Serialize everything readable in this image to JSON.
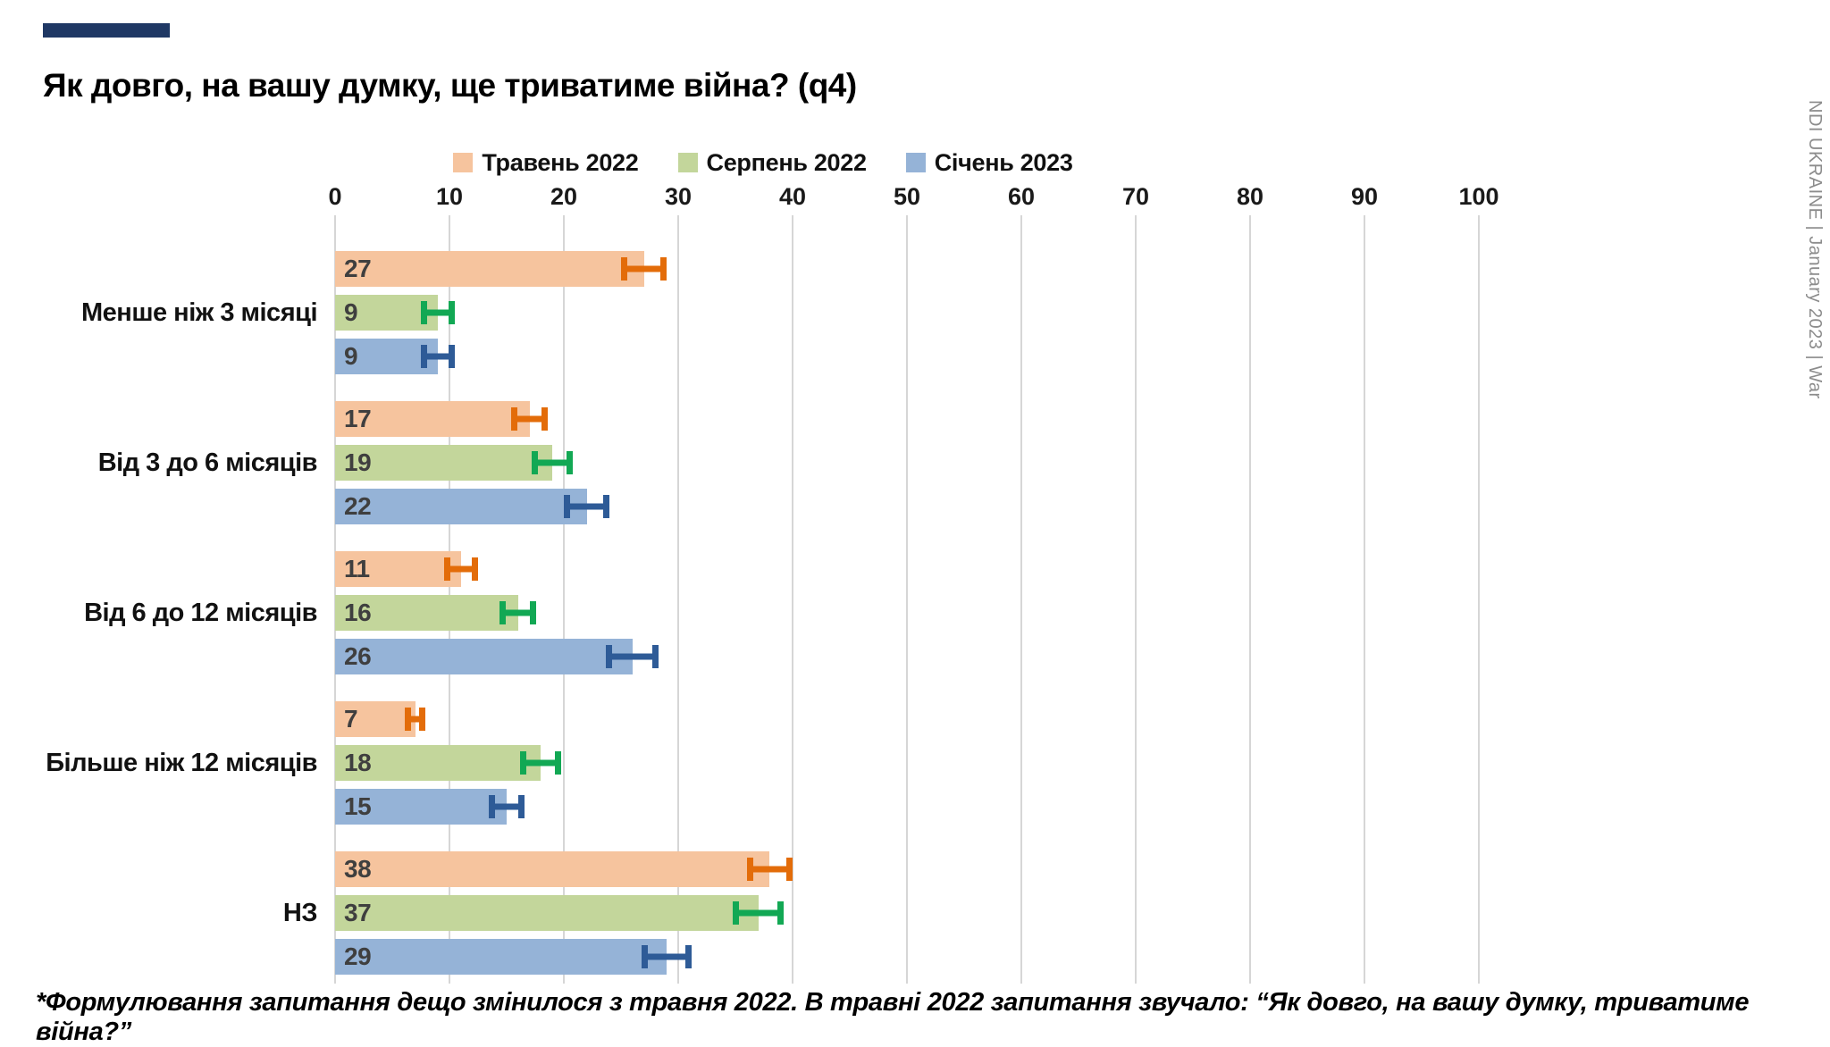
{
  "page": {
    "title": "Як довго, на вашу думку, ще триватиме війна? (q4)",
    "accent_color": "#1F3864",
    "sidebar_text": "NDI UKRAINE | January 2023 | War",
    "footnote": "*Формулювання запитання дещо змінилося з травня 2022. В травні 2022 запитання звучало: “Як довго, на вашу думку, триватиме війна?”"
  },
  "chart_data": {
    "type": "bar",
    "orientation": "horizontal",
    "title": "Як довго, на вашу думку, ще триватиме війна? (q4)",
    "xlabel": "",
    "ylabel": "",
    "xlim": [
      0,
      100
    ],
    "x_ticks": [
      0,
      10,
      20,
      30,
      40,
      50,
      60,
      70,
      80,
      90,
      100
    ],
    "grid": true,
    "legend_position": "top",
    "categories": [
      "Менше ніж 3 місяці",
      "Від 3 до 6 місяців",
      "Від 6 до 12 місяців",
      "Більше ніж 12 місяців",
      "НЗ"
    ],
    "series": [
      {
        "name": "Травень 2022",
        "color": "#F6C49E",
        "error_color": "#E36C09",
        "values": [
          27,
          17,
          11,
          7,
          38
        ],
        "error_margins": [
          2,
          1.6,
          1.5,
          0.9,
          2
        ]
      },
      {
        "name": "Серпень 2022",
        "color": "#C3D69B",
        "error_color": "#12A854",
        "values": [
          9,
          19,
          16,
          18,
          37
        ],
        "error_margins": [
          1.5,
          1.8,
          1.6,
          1.8,
          2.2
        ]
      },
      {
        "name": "Січень 2023",
        "color": "#95B3D7",
        "error_color": "#2E5B97",
        "values": [
          9,
          22,
          26,
          15,
          29
        ],
        "error_margins": [
          1.5,
          2,
          2.3,
          1.6,
          2.2
        ]
      }
    ]
  }
}
